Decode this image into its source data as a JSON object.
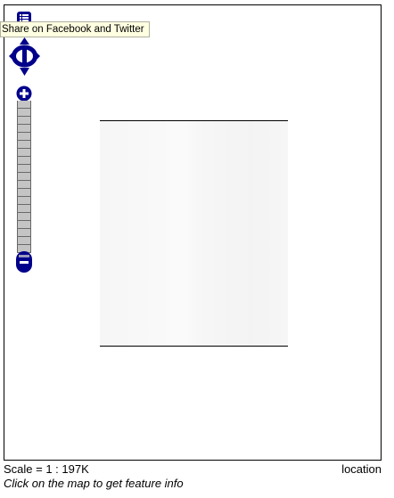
{
  "map": {
    "share_tooltip": "Share on Facebook and Twitter",
    "control_color": "#00008b",
    "tooltip_background": "#ffffe1"
  },
  "controls": {
    "share_icon": "list-icon",
    "pan_icon": "pan-arrows-icon",
    "zoom_in_icon": "plus-icon",
    "zoom_out_icon": "minus-icon"
  },
  "footer": {
    "scale_text": "Scale = 1 : 197K",
    "location_label": "location",
    "hint_text": "Click on the map to get feature info"
  }
}
